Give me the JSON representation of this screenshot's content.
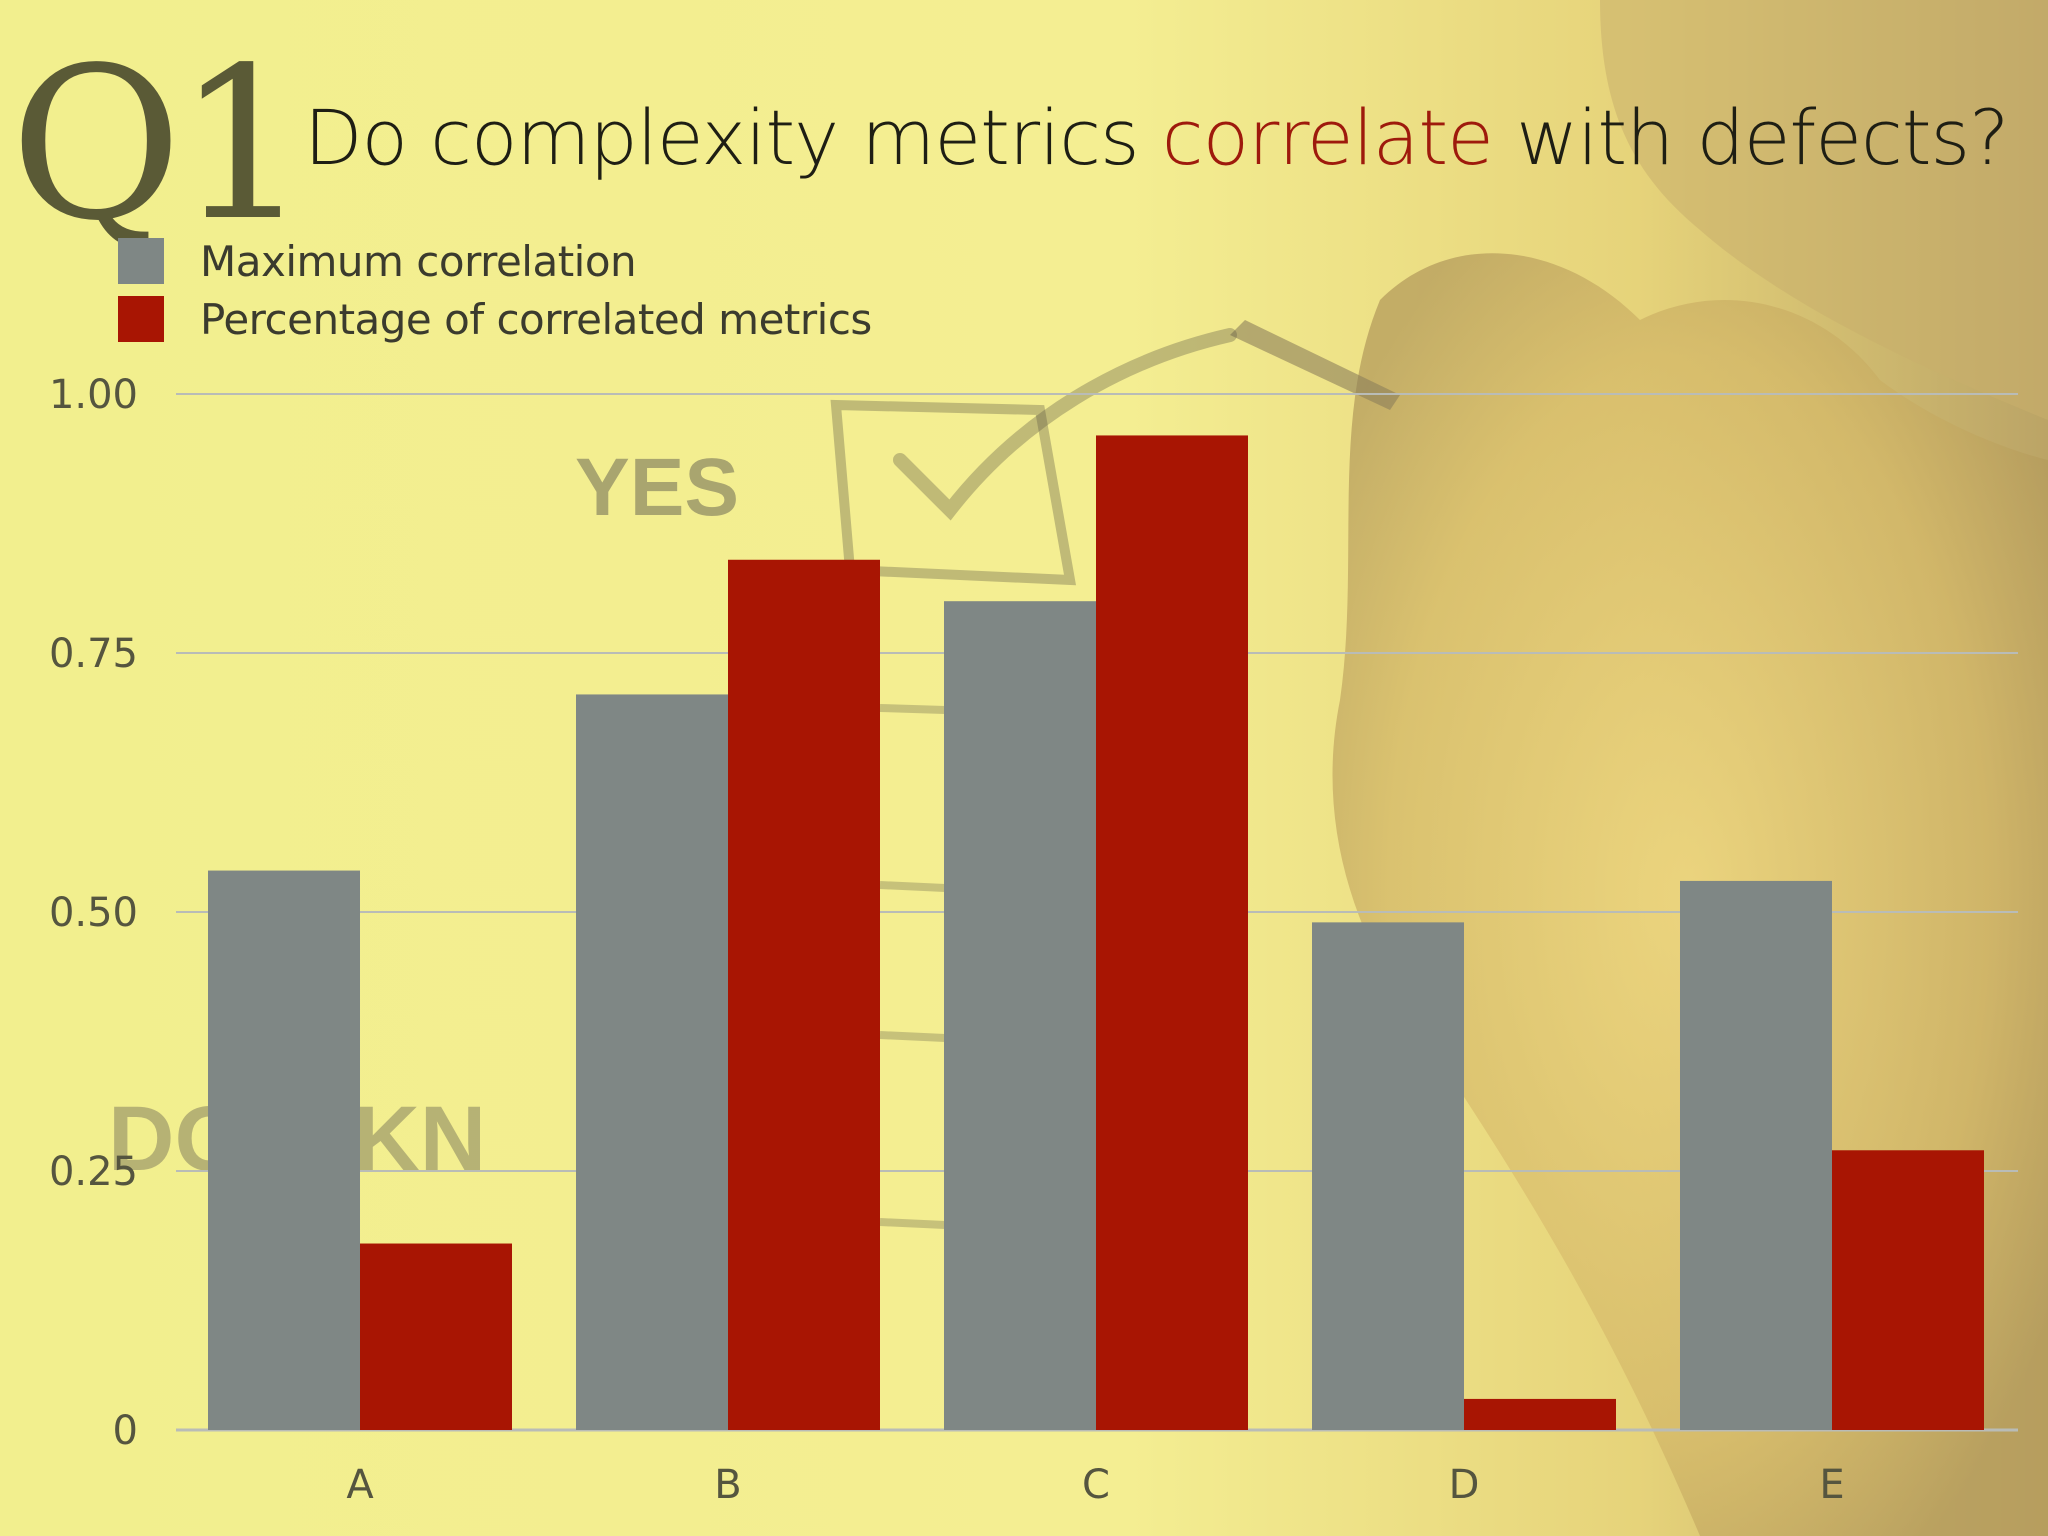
{
  "slide": {
    "label": "Q1",
    "title_parts": {
      "before": "Do complexity metrics ",
      "accent": "correlate",
      "after": " with defects?"
    },
    "accent_color": "#9e1a0c",
    "background_image_icons": [
      "pen-icon",
      "checkbox-icon",
      "checkmark-icon"
    ],
    "background_text": {
      "yes": "YES",
      "dont_know": "DO  T KN"
    }
  },
  "chart_data": {
    "type": "bar",
    "categories": [
      "A",
      "B",
      "C",
      "D",
      "E"
    ],
    "series": [
      {
        "name": "Maximum correlation",
        "color": "#7f8785",
        "values": [
          0.54,
          0.71,
          0.8,
          0.49,
          0.53
        ]
      },
      {
        "name": "Percentage of correlated metrics",
        "color": "#a81503",
        "values": [
          0.18,
          0.84,
          0.96,
          0.03,
          0.27
        ]
      }
    ],
    "y_ticks": [
      "0",
      "0.25",
      "0.50",
      "0.75",
      "1.00"
    ],
    "y_tick_values": [
      0,
      0.25,
      0.5,
      0.75,
      1.0
    ],
    "ylim": [
      0,
      1.0
    ],
    "grid": true,
    "legend_position": "top-left",
    "title": "",
    "xlabel": "",
    "ylabel": ""
  }
}
